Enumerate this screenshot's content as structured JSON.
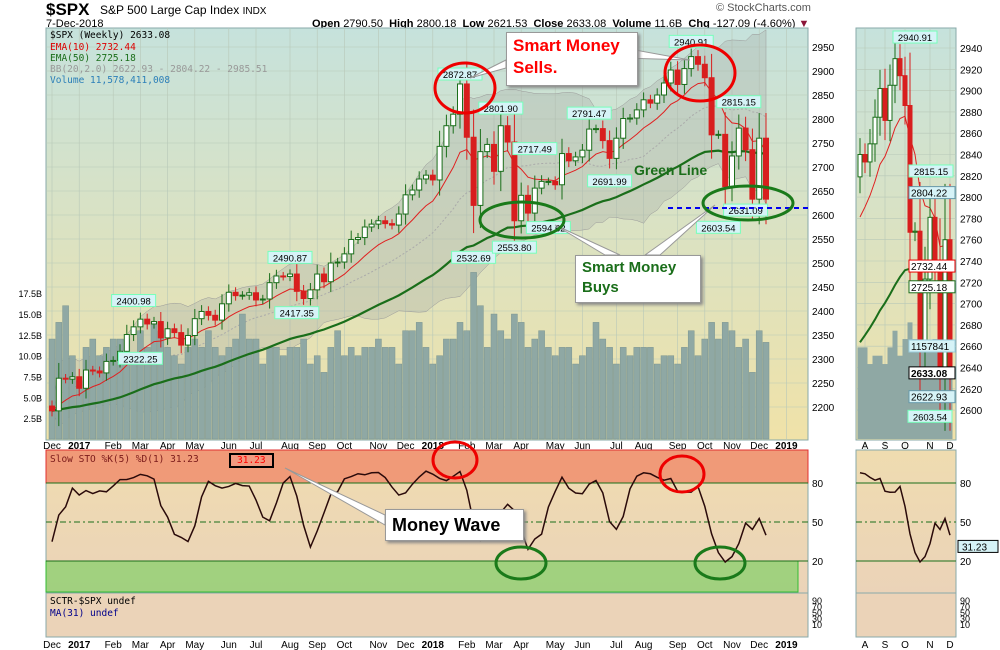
{
  "header": {
    "symbol": "$SPX",
    "name": "S&P 500 Large Cap Index",
    "exchange": "INDX",
    "date": "7-Dec-2018",
    "open_label": "Open",
    "open": "2790.50",
    "high_label": "High",
    "high": "2800.18",
    "low_label": "Low",
    "low": "2621.53",
    "close_label": "Close",
    "close": "2633.08",
    "volume_label": "Volume",
    "volume": "11.6B",
    "chg_label": "Chg",
    "chg": "-127.09 (-4.60%)",
    "watermark": "© StockCharts.com"
  },
  "legend": {
    "price": "$SPX (Weekly) 2633.08",
    "ema10": "EMA(10) 2732.44",
    "ema50": "EMA(50) 2725.18",
    "bb": "BB(20,2.0) 2622.93 - 2804.22 - 2985.51",
    "volume": "Volume 11,578,411,008",
    "sto": "Slow STO %K(5) %D(1) 31.23",
    "sto_box": "31.23",
    "sctr": "SCTR-$SPX undef",
    "ma31": "MA(31) undef"
  },
  "annotations": {
    "sells": "Smart Money Sells.",
    "buys": "Smart Money Buys",
    "green_line": "Green Line",
    "money_wave": "Money Wave"
  },
  "colors": {
    "up": "#1a6e1a",
    "down": "#d81e1e",
    "ema10": "#e02020",
    "ema50": "#1a6e1a",
    "accent": "#ff0000"
  },
  "right_tags": {
    "bb_mid": "2804.22",
    "ema10": "2732.44",
    "ema50": "2725.18",
    "volume": "1157841",
    "close": "2633.08",
    "bb_low": "2622.93",
    "sto": "31.23"
  },
  "chart_data": {
    "type": "candlestick",
    "title": "$SPX (Weekly)",
    "period": "weekly, Dec-2016 to 7-Dec-2018",
    "open_first": 2202,
    "close": [
      2192,
      2260,
      2258,
      2263,
      2239,
      2277,
      2275,
      2271,
      2295,
      2297,
      2316,
      2351,
      2367,
      2383,
      2373,
      2378,
      2344,
      2363,
      2355,
      2329,
      2349,
      2384,
      2399,
      2391,
      2381,
      2415,
      2439,
      2432,
      2433,
      2438,
      2423,
      2425,
      2459,
      2473,
      2472,
      2477,
      2441,
      2426,
      2444,
      2477,
      2461,
      2500,
      2502,
      2519,
      2549,
      2553,
      2575,
      2581,
      2588,
      2582,
      2579,
      2602,
      2642,
      2652,
      2675,
      2683,
      2673,
      2743,
      2786,
      2810,
      2873,
      2762,
      2620,
      2732,
      2747,
      2691,
      2786,
      2752,
      2588,
      2641,
      2604,
      2656,
      2670,
      2670,
      2663,
      2728,
      2713,
      2721,
      2735,
      2779,
      2780,
      2755,
      2718,
      2760,
      2801,
      2802,
      2819,
      2840,
      2833,
      2850,
      2875,
      2902,
      2872,
      2905,
      2930,
      2914,
      2886,
      2767,
      2768,
      2659,
      2723,
      2781,
      2736,
      2633,
      2760,
      2633.08
    ],
    "volume_billions": [
      12,
      14,
      16,
      10,
      7,
      11,
      12,
      10,
      11,
      12,
      12,
      12,
      10,
      13,
      11,
      14,
      13,
      11,
      10,
      9,
      11,
      12,
      11,
      13,
      11,
      10,
      11,
      12,
      15,
      12,
      12,
      9,
      11,
      11,
      10,
      11,
      11,
      12,
      9,
      10,
      8,
      11,
      13,
      10,
      11,
      10,
      11,
      11,
      12,
      11,
      11,
      9,
      13,
      13,
      14,
      11,
      9,
      10,
      12,
      12,
      14,
      13,
      20,
      16,
      11,
      15,
      13,
      12,
      15,
      14,
      11,
      12,
      13,
      11,
      10,
      11,
      11,
      9,
      10,
      11,
      14,
      12,
      11,
      9,
      11,
      10,
      11,
      11,
      11,
      9,
      10,
      10,
      9,
      11,
      13,
      10,
      12,
      14,
      12,
      14,
      13,
      11,
      12,
      8,
      13,
      11.6
    ],
    "price_ylim": [
      2131,
      2990
    ],
    "price_ticks": [
      "2200",
      "2250",
      "2300",
      "2350",
      "2400",
      "2450",
      "2500",
      "2550",
      "2600",
      "2650",
      "2700",
      "2750",
      "2800",
      "2850",
      "2900",
      "2950"
    ],
    "volume_ticks": [
      "2.5B",
      "5.0B",
      "7.5B",
      "10.0B",
      "12.5B",
      "15.0B",
      "17.5B"
    ],
    "x_ticks": [
      {
        "label": "Dec",
        "week": 0
      },
      {
        "label": "2017",
        "week": 4
      },
      {
        "label": "Feb",
        "week": 9
      },
      {
        "label": "Mar",
        "week": 13
      },
      {
        "label": "Apr",
        "week": 17
      },
      {
        "label": "May",
        "week": 21
      },
      {
        "label": "Jun",
        "week": 26
      },
      {
        "label": "Jul",
        "week": 30
      },
      {
        "label": "Aug",
        "week": 35
      },
      {
        "label": "Sep",
        "week": 39
      },
      {
        "label": "Oct",
        "week": 43
      },
      {
        "label": "Nov",
        "week": 48
      },
      {
        "label": "Dec",
        "week": 52
      },
      {
        "label": "2018",
        "week": 56
      },
      {
        "label": "Feb",
        "week": 61
      },
      {
        "label": "Mar",
        "week": 65
      },
      {
        "label": "Apr",
        "week": 69
      },
      {
        "label": "May",
        "week": 74
      },
      {
        "label": "Jun",
        "week": 78
      },
      {
        "label": "Jul",
        "week": 83
      },
      {
        "label": "Aug",
        "week": 87
      },
      {
        "label": "Sep",
        "week": 92
      },
      {
        "label": "Oct",
        "week": 96
      },
      {
        "label": "Nov",
        "week": 100
      },
      {
        "label": "Dec",
        "week": 104
      },
      {
        "label": "2019",
        "week": 108
      }
    ],
    "price_labels": [
      {
        "text": "2400.98",
        "week": 12,
        "price": 2400.98
      },
      {
        "text": "2322.25",
        "week": 13,
        "price": 2322.25,
        "below": true
      },
      {
        "text": "2490.87",
        "week": 35,
        "price": 2490.87
      },
      {
        "text": "2417.35",
        "week": 36,
        "price": 2417.35,
        "below": true
      },
      {
        "text": "2872.87",
        "week": 60,
        "price": 2872.87
      },
      {
        "text": "2532.69",
        "week": 62,
        "price": 2532.69,
        "below": true
      },
      {
        "text": "2801.90",
        "week": 66,
        "price": 2801.9
      },
      {
        "text": "2553.80",
        "week": 68,
        "price": 2553.8,
        "below": true
      },
      {
        "text": "2717.49",
        "week": 71,
        "price": 2717.49
      },
      {
        "text": "2594.62",
        "week": 73,
        "price": 2594.62,
        "below": true
      },
      {
        "text": "2791.47",
        "week": 79,
        "price": 2791.47
      },
      {
        "text": "2691.99",
        "week": 82,
        "price": 2691.99,
        "below": true
      },
      {
        "text": "2940.91",
        "week": 94,
        "price": 2940.91
      },
      {
        "text": "2815.15",
        "week": 101,
        "price": 2815.15
      },
      {
        "text": "2603.54",
        "week": 98,
        "price": 2603.54,
        "below": true
      },
      {
        "text": "2631.09",
        "week": 102,
        "price": 2631.09,
        "below": true
      }
    ],
    "sto_levels": [
      "80",
      "50",
      "20"
    ],
    "sctr_ticks": [
      "90",
      "70",
      "50",
      "30",
      "10"
    ],
    "inset": {
      "weeks": 19,
      "ylim": [
        2590,
        2950
      ],
      "ticks": [
        "2600",
        "2620",
        "2640",
        "2660",
        "2680",
        "2700",
        "2720",
        "2740",
        "2760",
        "2780",
        "2800",
        "2820",
        "2840",
        "2860",
        "2880",
        "2900",
        "2920",
        "2940"
      ],
      "x_ticks": [
        {
          "label": "A",
          "week": 1
        },
        {
          "label": "S",
          "week": 5
        },
        {
          "label": "O",
          "week": 9
        },
        {
          "label": "N",
          "week": 14
        },
        {
          "label": "D",
          "week": 18
        }
      ],
      "labels": [
        {
          "text": "2940.91",
          "week": 11,
          "price": 2940.91
        },
        {
          "text": "2815.15",
          "week": 16,
          "price": 2815.15
        },
        {
          "text": "2603.54",
          "week": 14,
          "price": 2603.54,
          "below": true
        }
      ]
    }
  }
}
